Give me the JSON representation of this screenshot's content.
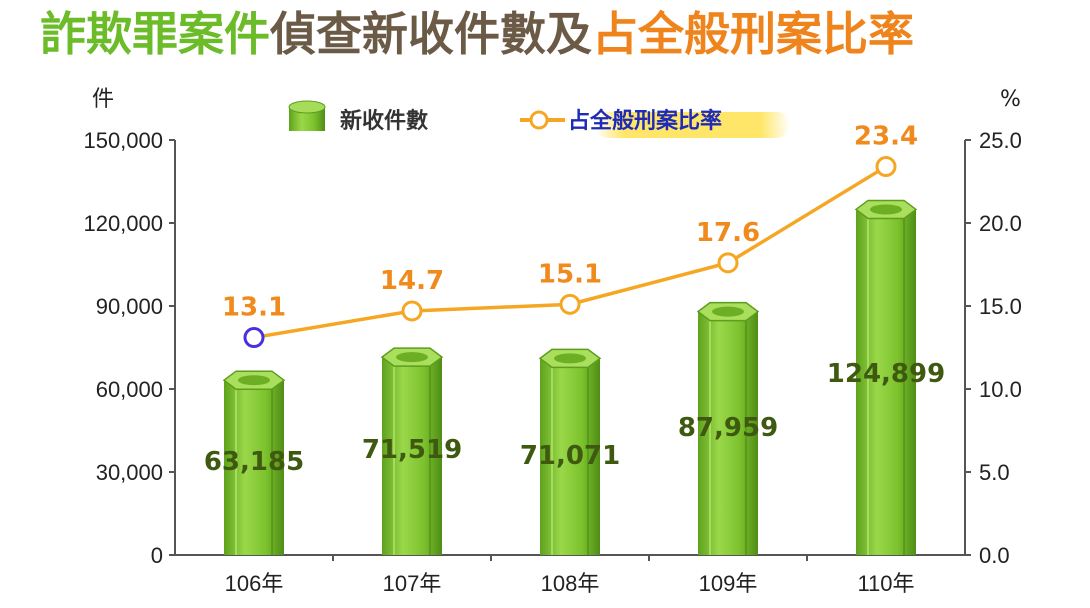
{
  "title": {
    "part1": "詐欺罪案件",
    "part2": "偵查新收件數及",
    "part3": "占全般刑案比率",
    "color1": "#6cbc2a",
    "color2": "#6b5a46",
    "color3": "#f0841c"
  },
  "chart_data": {
    "type": "bar",
    "categories": [
      "106年",
      "107年",
      "108年",
      "109年",
      "110年"
    ],
    "series": [
      {
        "name": "新收件數",
        "type": "bar",
        "axis": "left",
        "values": [
          63185,
          71519,
          71071,
          87959,
          124899
        ],
        "labels": [
          "63,185",
          "71,519",
          "71,071",
          "87,959",
          "124,899"
        ],
        "color": "#7dc12e"
      },
      {
        "name": "占全般刑案比率",
        "type": "line",
        "axis": "right",
        "values": [
          13.1,
          14.7,
          15.1,
          17.6,
          23.4
        ],
        "labels": [
          "13.1",
          "14.7",
          "15.1",
          "17.6",
          "23.4"
        ],
        "color": "#f5a623"
      }
    ],
    "left_axis": {
      "unit": "件",
      "min": 0,
      "max": 150000,
      "ticks": [
        0,
        30000,
        60000,
        90000,
        120000,
        150000
      ],
      "tick_labels": [
        "0",
        "30,000",
        "60,000",
        "90,000",
        "120,000",
        "150,000"
      ]
    },
    "right_axis": {
      "unit": "%",
      "min": 0,
      "max": 25,
      "ticks": [
        0,
        5,
        10,
        15,
        20,
        25
      ],
      "tick_labels": [
        "0.0",
        "5.0",
        "10.0",
        "15.0",
        "20.0",
        "25.0"
      ]
    },
    "legend": {
      "position": "top-center",
      "bar_label": "新收件數",
      "line_label": "占全般刑案比率"
    },
    "grid": false
  }
}
